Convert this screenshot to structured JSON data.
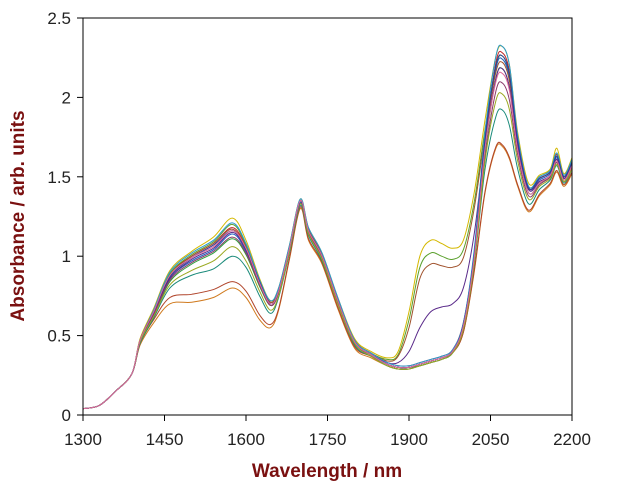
{
  "chart_data": {
    "type": "line",
    "title": "",
    "xlabel": "Wavelength / nm",
    "ylabel": "Absorbance / arb. units",
    "xlim": [
      1300,
      2200
    ],
    "ylim": [
      0,
      2.5
    ],
    "x_ticks": [
      1300,
      1450,
      1600,
      1750,
      1900,
      2050,
      2200
    ],
    "y_ticks": [
      0,
      0.5,
      1,
      1.5,
      2,
      2.5
    ],
    "x_tick_labels": [
      "1300",
      "1450",
      "1600",
      "1750",
      "1900",
      "2050",
      "2200"
    ],
    "y_tick_labels": [
      "0",
      "0.5",
      "1",
      "1.5",
      "2",
      "2.5"
    ],
    "grid": false,
    "legend": "none",
    "x": [
      1300,
      1330,
      1360,
      1390,
      1405,
      1430,
      1460,
      1500,
      1540,
      1575,
      1600,
      1625,
      1645,
      1660,
      1680,
      1700,
      1715,
      1740,
      1770,
      1800,
      1830,
      1860,
      1880,
      1900,
      1920,
      1940,
      1960,
      1980,
      2000,
      2020,
      2040,
      2060,
      2072,
      2085,
      2100,
      2120,
      2140,
      2160,
      2172,
      2185,
      2200
    ],
    "series": [
      {
        "color": "#1f5fbf",
        "values": [
          0.04,
          0.06,
          0.15,
          0.26,
          0.46,
          0.64,
          0.86,
          0.97,
          1.04,
          1.14,
          1.03,
          0.82,
          0.7,
          0.78,
          1.05,
          1.34,
          1.16,
          1.0,
          0.71,
          0.46,
          0.38,
          0.32,
          0.3,
          0.3,
          0.32,
          0.34,
          0.36,
          0.4,
          0.56,
          1.0,
          1.7,
          2.18,
          2.24,
          2.12,
          1.72,
          1.42,
          1.48,
          1.52,
          1.62,
          1.49,
          1.58
        ]
      },
      {
        "color": "#c02828",
        "values": [
          0.04,
          0.06,
          0.15,
          0.26,
          0.47,
          0.66,
          0.89,
          1.0,
          1.08,
          1.18,
          1.06,
          0.84,
          0.71,
          0.79,
          1.06,
          1.35,
          1.17,
          1.01,
          0.72,
          0.47,
          0.39,
          0.33,
          0.31,
          0.31,
          0.33,
          0.35,
          0.37,
          0.41,
          0.58,
          1.02,
          1.72,
          2.22,
          2.28,
          2.16,
          1.74,
          1.43,
          1.49,
          1.53,
          1.64,
          1.5,
          1.6
        ]
      },
      {
        "color": "#2e9e3a",
        "values": [
          0.04,
          0.06,
          0.15,
          0.26,
          0.45,
          0.62,
          0.84,
          0.95,
          1.02,
          1.11,
          1.01,
          0.81,
          0.69,
          0.77,
          1.04,
          1.33,
          1.15,
          0.99,
          0.7,
          0.45,
          0.38,
          0.32,
          0.3,
          0.3,
          0.31,
          0.33,
          0.35,
          0.39,
          0.55,
          0.98,
          1.66,
          2.12,
          2.18,
          2.06,
          1.68,
          1.4,
          1.46,
          1.5,
          1.6,
          1.48,
          1.56
        ]
      },
      {
        "color": "#d4b800",
        "values": [
          0.04,
          0.06,
          0.15,
          0.26,
          0.48,
          0.67,
          0.91,
          1.03,
          1.12,
          1.24,
          1.1,
          0.86,
          0.72,
          0.8,
          1.07,
          1.36,
          1.18,
          1.02,
          0.73,
          0.48,
          0.4,
          0.36,
          0.4,
          0.65,
          1.0,
          1.1,
          1.08,
          1.05,
          1.1,
          1.4,
          1.86,
          2.26,
          2.32,
          2.2,
          1.78,
          1.46,
          1.51,
          1.55,
          1.68,
          1.52,
          1.62
        ]
      },
      {
        "color": "#5aa02c",
        "values": [
          0.04,
          0.06,
          0.15,
          0.26,
          0.47,
          0.66,
          0.89,
          1.01,
          1.09,
          1.2,
          1.07,
          0.85,
          0.71,
          0.79,
          1.06,
          1.35,
          1.17,
          1.01,
          0.72,
          0.47,
          0.39,
          0.35,
          0.38,
          0.6,
          0.93,
          1.02,
          1.0,
          0.98,
          1.04,
          1.34,
          1.8,
          2.2,
          2.26,
          2.14,
          1.74,
          1.44,
          1.5,
          1.54,
          1.65,
          1.51,
          1.61
        ]
      },
      {
        "color": "#a0522d",
        "values": [
          0.04,
          0.06,
          0.15,
          0.26,
          0.47,
          0.65,
          0.88,
          1.0,
          1.08,
          1.17,
          1.05,
          0.84,
          0.71,
          0.79,
          1.06,
          1.35,
          1.17,
          1.01,
          0.72,
          0.47,
          0.39,
          0.34,
          0.37,
          0.55,
          0.86,
          0.95,
          0.94,
          0.93,
          0.99,
          1.3,
          1.76,
          2.16,
          2.22,
          2.1,
          1.72,
          1.43,
          1.49,
          1.53,
          1.63,
          1.5,
          1.59
        ]
      },
      {
        "color": "#5a2a8a",
        "values": [
          0.04,
          0.06,
          0.15,
          0.26,
          0.46,
          0.64,
          0.86,
          0.98,
          1.05,
          1.15,
          1.04,
          0.83,
          0.7,
          0.78,
          1.05,
          1.34,
          1.16,
          1.0,
          0.71,
          0.46,
          0.38,
          0.33,
          0.33,
          0.4,
          0.55,
          0.65,
          0.68,
          0.7,
          0.8,
          1.14,
          1.7,
          2.12,
          2.18,
          2.06,
          1.7,
          1.42,
          1.47,
          1.51,
          1.61,
          1.49,
          1.57
        ]
      },
      {
        "color": "#d07a1e",
        "values": [
          0.04,
          0.06,
          0.15,
          0.26,
          0.44,
          0.58,
          0.7,
          0.71,
          0.74,
          0.8,
          0.74,
          0.6,
          0.55,
          0.66,
          0.98,
          1.3,
          1.1,
          0.95,
          0.66,
          0.42,
          0.36,
          0.31,
          0.29,
          0.29,
          0.31,
          0.33,
          0.35,
          0.39,
          0.52,
          0.9,
          1.4,
          1.68,
          1.69,
          1.61,
          1.44,
          1.28,
          1.38,
          1.45,
          1.53,
          1.44,
          1.52
        ]
      },
      {
        "color": "#b0442a",
        "values": [
          0.04,
          0.06,
          0.15,
          0.26,
          0.45,
          0.6,
          0.74,
          0.76,
          0.79,
          0.84,
          0.78,
          0.63,
          0.57,
          0.67,
          0.99,
          1.31,
          1.11,
          0.96,
          0.67,
          0.43,
          0.37,
          0.31,
          0.29,
          0.29,
          0.31,
          0.33,
          0.35,
          0.39,
          0.52,
          0.91,
          1.41,
          1.69,
          1.7,
          1.62,
          1.45,
          1.29,
          1.39,
          1.46,
          1.54,
          1.45,
          1.53
        ]
      },
      {
        "color": "#1a8a7a",
        "values": [
          0.04,
          0.06,
          0.15,
          0.26,
          0.45,
          0.61,
          0.8,
          0.88,
          0.92,
          1.0,
          0.93,
          0.75,
          0.64,
          0.74,
          1.02,
          1.32,
          1.13,
          0.97,
          0.69,
          0.44,
          0.37,
          0.31,
          0.29,
          0.29,
          0.31,
          0.33,
          0.35,
          0.39,
          0.54,
          0.95,
          1.55,
          1.88,
          1.92,
          1.82,
          1.55,
          1.33,
          1.42,
          1.48,
          1.57,
          1.46,
          1.55
        ]
      },
      {
        "color": "#2a9ad0",
        "values": [
          0.04,
          0.06,
          0.15,
          0.26,
          0.47,
          0.66,
          0.9,
          1.02,
          1.1,
          1.21,
          1.08,
          0.85,
          0.72,
          0.8,
          1.07,
          1.36,
          1.18,
          1.02,
          0.73,
          0.47,
          0.39,
          0.33,
          0.31,
          0.31,
          0.33,
          0.35,
          0.37,
          0.41,
          0.58,
          1.04,
          1.78,
          2.26,
          2.32,
          2.2,
          1.76,
          1.44,
          1.5,
          1.54,
          1.65,
          1.51,
          1.61
        ]
      },
      {
        "color": "#8a3a6a",
        "values": [
          0.04,
          0.06,
          0.15,
          0.26,
          0.46,
          0.63,
          0.85,
          0.96,
          1.03,
          1.12,
          1.02,
          0.82,
          0.69,
          0.77,
          1.04,
          1.33,
          1.15,
          0.99,
          0.7,
          0.45,
          0.38,
          0.32,
          0.3,
          0.3,
          0.32,
          0.34,
          0.36,
          0.4,
          0.55,
          0.97,
          1.62,
          2.04,
          2.09,
          1.98,
          1.64,
          1.38,
          1.45,
          1.5,
          1.59,
          1.47,
          1.56
        ]
      },
      {
        "color": "#9aa820",
        "values": [
          0.04,
          0.06,
          0.15,
          0.26,
          0.46,
          0.62,
          0.82,
          0.91,
          0.97,
          1.06,
          0.97,
          0.78,
          0.66,
          0.75,
          1.03,
          1.33,
          1.14,
          0.98,
          0.69,
          0.45,
          0.37,
          0.31,
          0.29,
          0.29,
          0.31,
          0.33,
          0.35,
          0.39,
          0.54,
          0.96,
          1.6,
          1.98,
          2.02,
          1.92,
          1.6,
          1.36,
          1.44,
          1.49,
          1.58,
          1.47,
          1.55
        ]
      },
      {
        "color": "#2c3e9a",
        "values": [
          0.04,
          0.06,
          0.15,
          0.26,
          0.47,
          0.65,
          0.87,
          0.99,
          1.07,
          1.16,
          1.05,
          0.84,
          0.7,
          0.78,
          1.05,
          1.34,
          1.16,
          1.0,
          0.71,
          0.46,
          0.38,
          0.32,
          0.3,
          0.3,
          0.32,
          0.34,
          0.36,
          0.4,
          0.57,
          1.01,
          1.74,
          2.2,
          2.26,
          2.14,
          1.73,
          1.43,
          1.49,
          1.53,
          1.63,
          1.5,
          1.59
        ]
      },
      {
        "color": "#e06a9a",
        "values": [
          0.04,
          0.06,
          0.15,
          0.26,
          0.47,
          0.65,
          0.88,
          0.99,
          1.06,
          1.16,
          1.05,
          0.83,
          0.7,
          0.78,
          1.05,
          1.35,
          1.16,
          1.0,
          0.71,
          0.46,
          0.38,
          0.32,
          0.3,
          0.3,
          0.32,
          0.34,
          0.36,
          0.4,
          0.56,
          0.99,
          1.68,
          2.1,
          2.15,
          2.04,
          1.67,
          1.4,
          1.46,
          1.51,
          1.6,
          1.48,
          1.57
        ]
      }
    ]
  }
}
